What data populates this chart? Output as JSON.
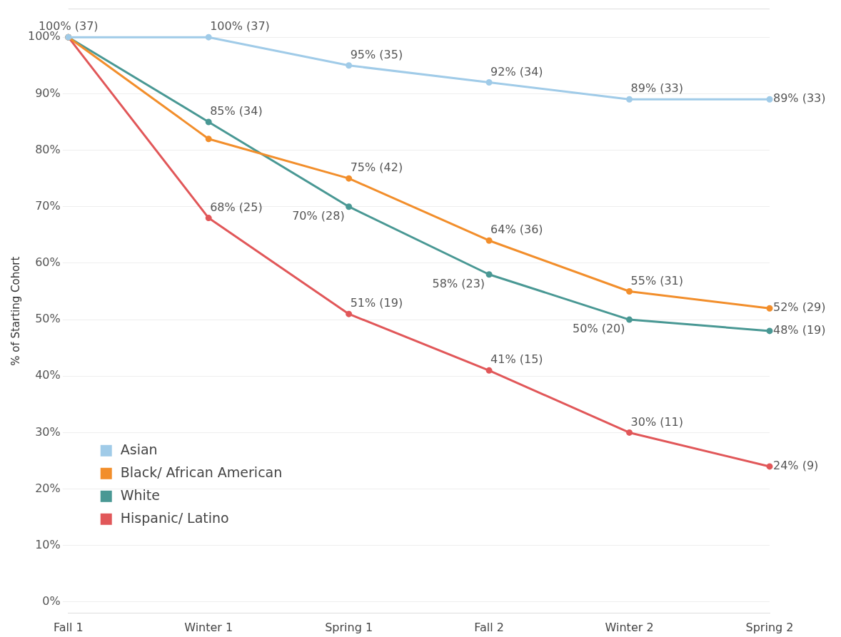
{
  "chart_data": {
    "type": "line",
    "ylabel": "% of Starting Cohort",
    "categories": [
      "Fall 1",
      "Winter 1",
      "Spring 1",
      "Fall 2",
      "Winter 2",
      "Spring 2"
    ],
    "series": [
      {
        "name": "Asian",
        "color": "#a0cbe8",
        "values": [
          100,
          100,
          95,
          92,
          89,
          89
        ],
        "value_labels": [
          "100% (37)",
          "100% (37)",
          "95% (35)",
          "92% (34)",
          "89% (33)",
          "89% (33)"
        ]
      },
      {
        "name": "Black/ African American",
        "color": "#f28e2b",
        "values": [
          100,
          82,
          75,
          64,
          55,
          52
        ],
        "value_labels": [
          null,
          null,
          "75% (42)",
          "64% (36)",
          "55% (31)",
          "52% (29)"
        ]
      },
      {
        "name": "White",
        "color": "#499894",
        "values": [
          100,
          85,
          70,
          58,
          50,
          48
        ],
        "value_labels": [
          null,
          "85% (34)",
          "70% (28)",
          "58% (23)",
          "50% (20)",
          "48% (19)"
        ]
      },
      {
        "name": "Hispanic/ Latino",
        "color": "#e15759",
        "values": [
          100,
          68,
          51,
          41,
          30,
          24
        ],
        "value_labels": [
          null,
          "68% (25)",
          "51% (19)",
          "41% (15)",
          "30% (11)",
          "24% (9)"
        ]
      }
    ],
    "ylim": [
      -2,
      105
    ],
    "yticks": [
      {
        "value": 0,
        "label": "0%"
      },
      {
        "value": 10,
        "label": "10%"
      },
      {
        "value": 20,
        "label": "20%"
      },
      {
        "value": 30,
        "label": "30%"
      },
      {
        "value": 40,
        "label": "40%"
      },
      {
        "value": 50,
        "label": "50%"
      },
      {
        "value": 60,
        "label": "60%"
      },
      {
        "value": 70,
        "label": "70%"
      },
      {
        "value": 80,
        "label": "80%"
      },
      {
        "value": 90,
        "label": "90%"
      },
      {
        "value": 100,
        "label": "100%"
      }
    ],
    "grid": "y",
    "legend": "bottom left",
    "marker": "circle",
    "line_style": "solid"
  }
}
